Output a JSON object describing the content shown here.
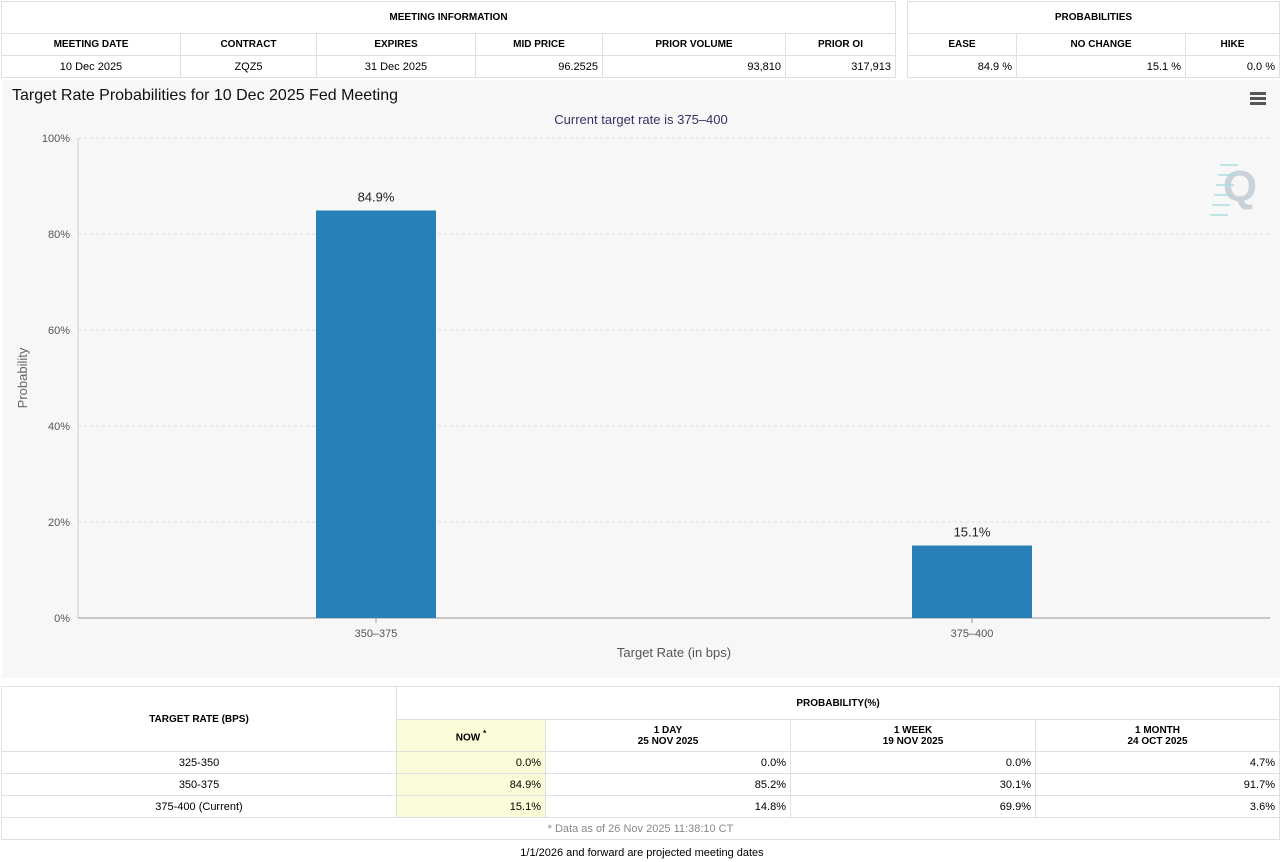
{
  "meeting_info": {
    "title": "MEETING INFORMATION",
    "headers": [
      "MEETING DATE",
      "CONTRACT",
      "EXPIRES",
      "MID PRICE",
      "PRIOR VOLUME",
      "PRIOR OI"
    ],
    "values": [
      "10 Dec 2025",
      "ZQZ5",
      "31 Dec 2025",
      "96.2525",
      "93,810",
      "317,913"
    ]
  },
  "probabilities": {
    "title": "PROBABILITIES",
    "headers": [
      "EASE",
      "NO CHANGE",
      "HIKE"
    ],
    "values": [
      "84.9 %",
      "15.1 %",
      "0.0 %"
    ]
  },
  "chart": {
    "menu_icon": "hamburger-menu-icon",
    "watermark_icon": "q-logo-icon"
  },
  "chart_data": {
    "type": "bar",
    "title": "Target Rate Probabilities for 10 Dec 2025 Fed Meeting",
    "subtitle": "Current target rate is 375–400",
    "categories": [
      "350–375",
      "375–400"
    ],
    "values": [
      84.9,
      15.1
    ],
    "data_labels": [
      "84.9%",
      "15.1%"
    ],
    "xlabel": "Target Rate (in bps)",
    "ylabel": "Probability",
    "ylim": [
      0,
      100
    ],
    "yticks": [
      0,
      20,
      40,
      60,
      80,
      100
    ],
    "ytick_labels": [
      "0%",
      "20%",
      "40%",
      "60%",
      "80%",
      "100%"
    ],
    "bar_color": "#2980b9",
    "grid": true
  },
  "rate_table": {
    "col_target": "TARGET RATE (BPS)",
    "prob_title": "PROBABILITY(%)",
    "now_label": "NOW",
    "now_mark": "*",
    "cols": [
      {
        "line1": "1 DAY",
        "line2": "25 NOV 2025"
      },
      {
        "line1": "1 WEEK",
        "line2": "19 NOV 2025"
      },
      {
        "line1": "1 MONTH",
        "line2": "24 OCT 2025"
      }
    ],
    "rows": [
      {
        "rate": "325-350",
        "now": "0.0%",
        "d1": "0.0%",
        "w1": "0.0%",
        "m1": "4.7%"
      },
      {
        "rate": "350-375",
        "now": "84.9%",
        "d1": "85.2%",
        "w1": "30.1%",
        "m1": "91.7%"
      },
      {
        "rate": "375-400 (Current)",
        "now": "15.1%",
        "d1": "14.8%",
        "w1": "69.9%",
        "m1": "3.6%"
      }
    ],
    "footnote": "* Data as of 26 Nov 2025 11:38:10 CT",
    "now_highlight": "#fbfbd8"
  },
  "projected_note": "1/1/2026 and forward are projected meeting dates"
}
